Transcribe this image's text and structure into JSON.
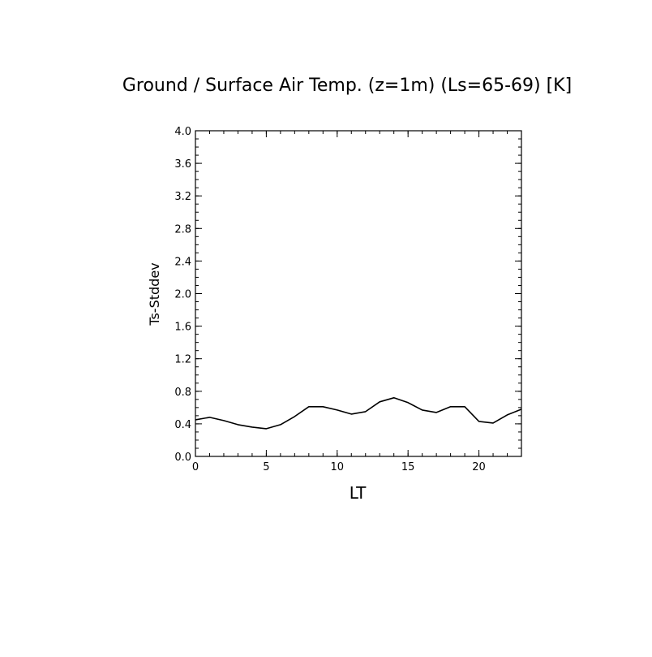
{
  "chart_data": {
    "type": "line",
    "title": "Ground / Surface Air Temp. (z=1m) (Ls=65-69) [K]",
    "xlabel": "LT",
    "ylabel": "Ts-Stddev",
    "xlim": [
      0,
      23
    ],
    "ylim": [
      0.0,
      4.0
    ],
    "x_ticks": [
      0,
      5,
      10,
      15,
      20
    ],
    "x_tick_labels": [
      "0",
      "5",
      "10",
      "15",
      "20"
    ],
    "x_minor_step": 1,
    "y_ticks": [
      0.0,
      0.4,
      0.8,
      1.2,
      1.6,
      2.0,
      2.4,
      2.8,
      3.2,
      3.6,
      4.0
    ],
    "y_tick_labels": [
      "0.0",
      "0.4",
      "0.8",
      "1.2",
      "1.6",
      "2.0",
      "2.4",
      "2.8",
      "3.2",
      "3.6",
      "4.0"
    ],
    "y_minor_step": 0.1,
    "grid": false,
    "series": [
      {
        "x": [
          0,
          1,
          2,
          3,
          4,
          5,
          6,
          7,
          8,
          9,
          10,
          11,
          12,
          13,
          14,
          15,
          16,
          17,
          18,
          19,
          20,
          21,
          22,
          23
        ],
        "values": [
          0.45,
          0.48,
          0.44,
          0.39,
          0.36,
          0.34,
          0.39,
          0.49,
          0.61,
          0.61,
          0.57,
          0.52,
          0.55,
          0.67,
          0.72,
          0.66,
          0.57,
          0.54,
          0.61,
          0.61,
          0.43,
          0.41,
          0.51,
          0.58
        ]
      }
    ]
  }
}
